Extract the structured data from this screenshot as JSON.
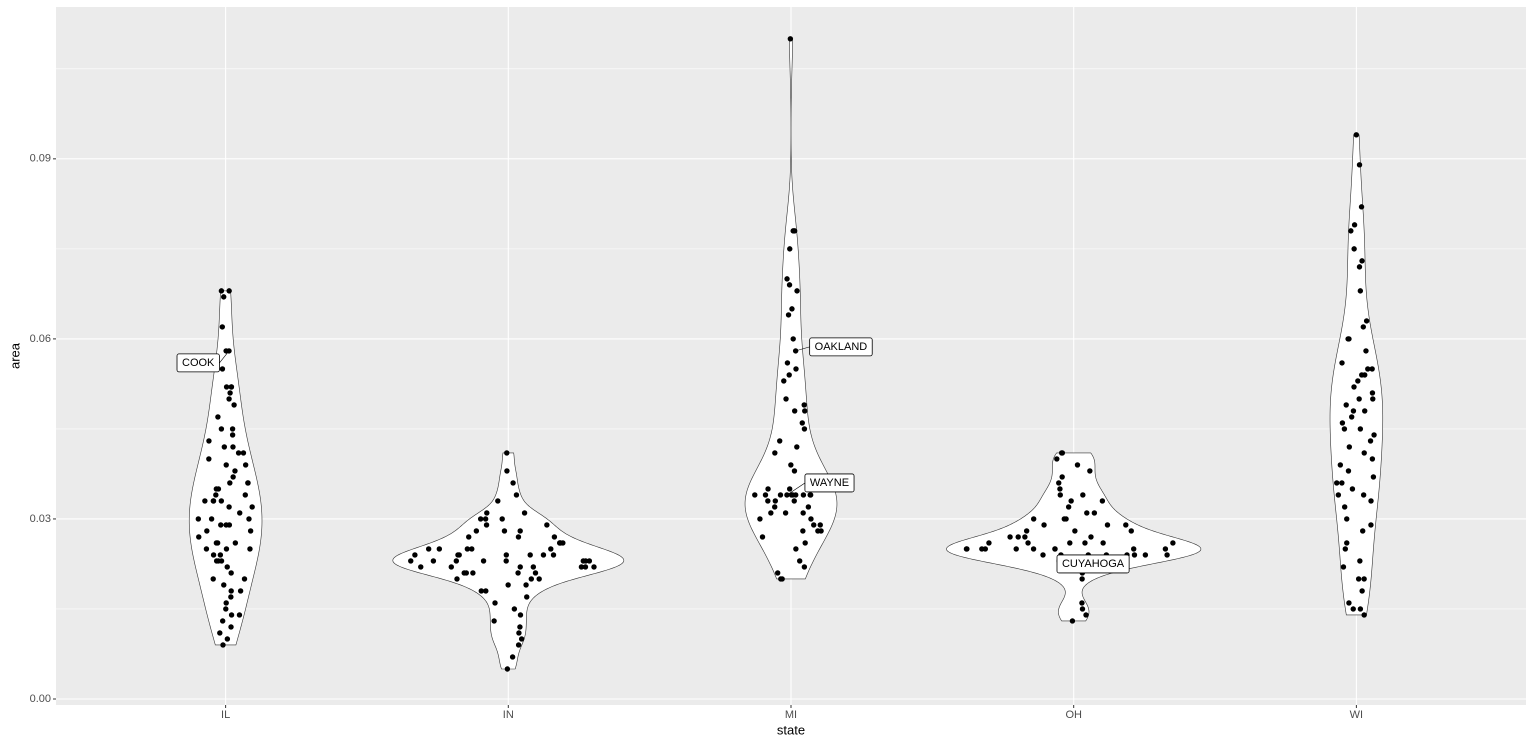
{
  "chart_data": {
    "type": "violin",
    "x_label": "state",
    "y_label": "area",
    "ylim": [
      -0.001,
      0.1153
    ],
    "yticks": [
      {
        "value": 0,
        "label": "0.00"
      },
      {
        "value": 0.03,
        "label": "0.03"
      },
      {
        "value": 0.06,
        "label": "0.06"
      },
      {
        "value": 0.09,
        "label": "0.09"
      }
    ],
    "grid": true,
    "color": "#000000",
    "series": [
      {
        "name": "IL",
        "values": [
          0.068,
          0.068,
          0.067,
          0.062,
          0.058,
          0.058,
          0.055,
          0.052,
          0.052,
          0.052,
          0.051,
          0.05,
          0.049,
          0.047,
          0.045,
          0.045,
          0.044,
          0.043,
          0.042,
          0.042,
          0.041,
          0.041,
          0.04,
          0.039,
          0.039,
          0.038,
          0.037,
          0.036,
          0.036,
          0.036,
          0.035,
          0.035,
          0.034,
          0.034,
          0.033,
          0.033,
          0.033,
          0.033,
          0.032,
          0.032,
          0.031,
          0.03,
          0.03,
          0.03,
          0.029,
          0.029,
          0.029,
          0.028,
          0.028,
          0.027,
          0.026,
          0.026,
          0.026,
          0.025,
          0.025,
          0.025,
          0.024,
          0.024,
          0.023,
          0.023,
          0.023,
          0.022,
          0.021,
          0.02,
          0.02,
          0.019,
          0.018,
          0.018,
          0.017,
          0.016,
          0.015,
          0.014,
          0.014,
          0.013,
          0.012,
          0.011,
          0.01,
          0.009
        ]
      },
      {
        "name": "IN",
        "values": [
          0.041,
          0.038,
          0.036,
          0.034,
          0.033,
          0.031,
          0.031,
          0.03,
          0.03,
          0.03,
          0.029,
          0.029,
          0.028,
          0.028,
          0.028,
          0.027,
          0.027,
          0.027,
          0.026,
          0.026,
          0.026,
          0.026,
          0.025,
          0.025,
          0.025,
          0.025,
          0.025,
          0.024,
          0.024,
          0.024,
          0.024,
          0.024,
          0.024,
          0.024,
          0.023,
          0.023,
          0.023,
          0.023,
          0.023,
          0.023,
          0.023,
          0.023,
          0.022,
          0.022,
          0.022,
          0.022,
          0.022,
          0.022,
          0.022,
          0.021,
          0.021,
          0.021,
          0.021,
          0.021,
          0.02,
          0.02,
          0.02,
          0.019,
          0.019,
          0.018,
          0.018,
          0.017,
          0.016,
          0.015,
          0.014,
          0.013,
          0.012,
          0.011,
          0.01,
          0.009,
          0.007,
          0.005
        ]
      },
      {
        "name": "MI",
        "values": [
          0.11,
          0.078,
          0.078,
          0.075,
          0.07,
          0.069,
          0.068,
          0.065,
          0.064,
          0.06,
          0.058,
          0.056,
          0.055,
          0.054,
          0.053,
          0.05,
          0.049,
          0.048,
          0.048,
          0.046,
          0.045,
          0.043,
          0.042,
          0.041,
          0.039,
          0.038,
          0.037,
          0.036,
          0.035,
          0.035,
          0.034,
          0.034,
          0.034,
          0.034,
          0.034,
          0.034,
          0.034,
          0.034,
          0.034,
          0.034,
          0.033,
          0.033,
          0.033,
          0.032,
          0.032,
          0.031,
          0.031,
          0.031,
          0.03,
          0.03,
          0.029,
          0.029,
          0.028,
          0.028,
          0.028,
          0.027,
          0.026,
          0.025,
          0.023,
          0.022,
          0.021,
          0.02,
          0.02
        ]
      },
      {
        "name": "OH",
        "values": [
          0.041,
          0.041,
          0.04,
          0.039,
          0.038,
          0.037,
          0.036,
          0.035,
          0.034,
          0.034,
          0.033,
          0.033,
          0.032,
          0.031,
          0.031,
          0.03,
          0.03,
          0.03,
          0.029,
          0.029,
          0.029,
          0.028,
          0.028,
          0.028,
          0.027,
          0.027,
          0.027,
          0.027,
          0.026,
          0.026,
          0.026,
          0.026,
          0.026,
          0.026,
          0.025,
          0.025,
          0.025,
          0.025,
          0.025,
          0.025,
          0.025,
          0.025,
          0.025,
          0.025,
          0.024,
          0.024,
          0.024,
          0.024,
          0.024,
          0.024,
          0.024,
          0.024,
          0.023,
          0.023,
          0.023,
          0.023,
          0.022,
          0.022,
          0.021,
          0.02,
          0.016,
          0.015,
          0.014,
          0.013
        ]
      },
      {
        "name": "WI",
        "values": [
          0.094,
          0.089,
          0.082,
          0.079,
          0.078,
          0.075,
          0.073,
          0.072,
          0.068,
          0.063,
          0.062,
          0.06,
          0.06,
          0.058,
          0.056,
          0.055,
          0.055,
          0.054,
          0.054,
          0.053,
          0.052,
          0.051,
          0.05,
          0.05,
          0.049,
          0.048,
          0.048,
          0.047,
          0.046,
          0.045,
          0.045,
          0.044,
          0.043,
          0.042,
          0.041,
          0.04,
          0.039,
          0.038,
          0.037,
          0.036,
          0.036,
          0.035,
          0.034,
          0.034,
          0.033,
          0.032,
          0.03,
          0.029,
          0.028,
          0.026,
          0.025,
          0.023,
          0.022,
          0.02,
          0.02,
          0.018,
          0.016,
          0.015,
          0.015,
          0.014
        ]
      }
    ],
    "annotations": [
      {
        "text": "COOK",
        "series": 0,
        "value": 0.058
      },
      {
        "text": "OAKLAND",
        "series": 2,
        "value": 0.058
      },
      {
        "text": "WAYNE",
        "series": 2,
        "value": 0.034
      },
      {
        "text": "CUYAHOGA",
        "series": 3,
        "value": 0.024
      }
    ]
  }
}
